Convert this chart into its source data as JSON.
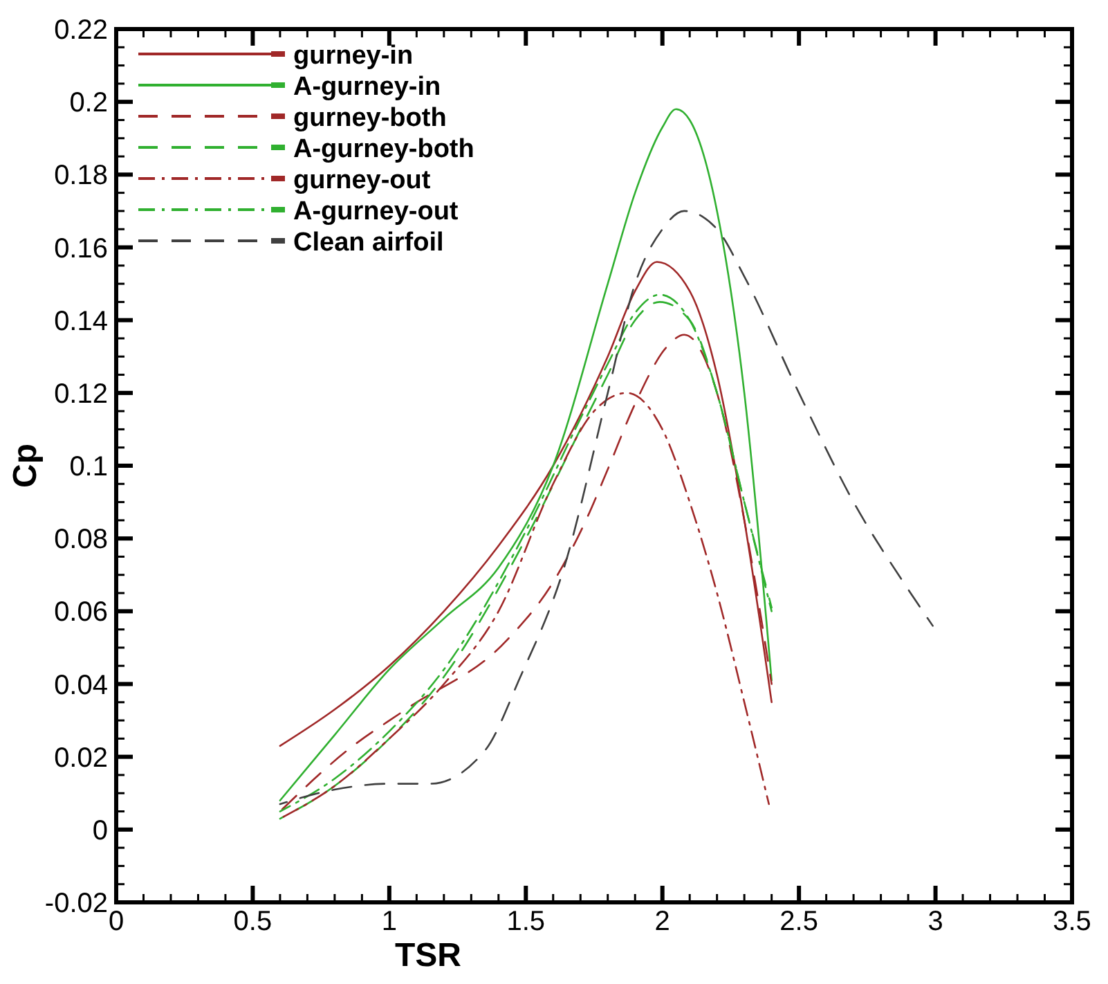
{
  "chart_data": {
    "type": "line",
    "xlabel": "TSR",
    "ylabel": "Cp",
    "xlim": [
      0,
      3.5
    ],
    "xticks": [
      0,
      0.5,
      1,
      1.5,
      2,
      2.5,
      3,
      3.5
    ],
    "ylim": [
      -0.02,
      0.22
    ],
    "yticks": [
      -0.02,
      0,
      0.02,
      0.04,
      0.06,
      0.08,
      0.1,
      0.12,
      0.14,
      0.16,
      0.18,
      0.2,
      0.22
    ],
    "grid": false,
    "legend": "top left",
    "marker": "none",
    "series": [
      {
        "name": "gurney-in",
        "color": "#a02828",
        "line_style": "solid",
        "x": [
          0.6,
          0.8,
          1.0,
          1.2,
          1.4,
          1.6,
          1.8,
          1.9,
          1.98,
          2.1,
          2.2,
          2.3,
          2.4
        ],
        "values": [
          0.023,
          0.033,
          0.045,
          0.06,
          0.078,
          0.1,
          0.13,
          0.148,
          0.156,
          0.148,
          0.125,
          0.085,
          0.035
        ]
      },
      {
        "name": "A-gurney-in",
        "color": "#30b030",
        "line_style": "solid",
        "x": [
          0.6,
          0.8,
          1.0,
          1.2,
          1.4,
          1.6,
          1.8,
          1.9,
          2.0,
          2.05,
          2.1,
          2.2,
          2.3,
          2.4
        ],
        "values": [
          0.008,
          0.026,
          0.044,
          0.058,
          0.072,
          0.1,
          0.15,
          0.175,
          0.193,
          0.198,
          0.195,
          0.17,
          0.12,
          0.041
        ]
      },
      {
        "name": "gurney-both",
        "color": "#a02828",
        "line_style": "dashed",
        "x": [
          0.6,
          0.85,
          1.06,
          1.43,
          1.6,
          1.72,
          1.8,
          1.9,
          2.02,
          2.08,
          2.2,
          2.3,
          2.4
        ],
        "values": [
          0.005,
          0.022,
          0.033,
          0.052,
          0.068,
          0.085,
          0.099,
          0.117,
          0.133,
          0.136,
          0.12,
          0.085,
          0.04
        ]
      },
      {
        "name": "A-gurney-both",
        "color": "#30b030",
        "line_style": "dashed",
        "x": [
          0.6,
          0.8,
          1.0,
          1.2,
          1.5,
          1.7,
          1.8,
          1.9,
          1.99,
          2.1,
          2.2,
          2.3,
          2.4
        ],
        "values": [
          0.003,
          0.012,
          0.025,
          0.042,
          0.08,
          0.11,
          0.125,
          0.14,
          0.145,
          0.14,
          0.12,
          0.09,
          0.061
        ]
      },
      {
        "name": "gurney-out",
        "color": "#a02828",
        "line_style": "dashdot",
        "x": [
          0.6,
          0.8,
          1.0,
          1.2,
          1.4,
          1.6,
          1.75,
          1.87,
          2.0,
          2.1,
          2.2,
          2.3,
          2.39
        ],
        "values": [
          0.003,
          0.012,
          0.025,
          0.04,
          0.06,
          0.095,
          0.115,
          0.12,
          0.11,
          0.09,
          0.065,
          0.035,
          0.007
        ]
      },
      {
        "name": "A-gurney-out",
        "color": "#30b030",
        "line_style": "dashdot",
        "x": [
          0.6,
          0.8,
          1.0,
          1.2,
          1.5,
          1.7,
          1.8,
          1.9,
          1.99,
          2.1,
          2.2,
          2.3,
          2.4
        ],
        "values": [
          0.005,
          0.014,
          0.027,
          0.044,
          0.082,
          0.113,
          0.128,
          0.142,
          0.147,
          0.14,
          0.12,
          0.09,
          0.06
        ]
      },
      {
        "name": "Clean airfoil",
        "color": "#404040",
        "line_style": "dashed",
        "x": [
          0.6,
          0.8,
          1.0,
          1.15,
          1.35,
          1.48,
          1.64,
          1.8,
          1.9,
          2.0,
          2.08,
          2.2,
          2.3,
          2.5,
          2.7,
          2.9,
          2.99
        ],
        "values": [
          0.007,
          0.011,
          0.0126,
          0.0126,
          0.0217,
          0.042,
          0.072,
          0.12,
          0.15,
          0.165,
          0.17,
          0.165,
          0.152,
          0.12,
          0.09,
          0.066,
          0.056
        ]
      }
    ]
  }
}
